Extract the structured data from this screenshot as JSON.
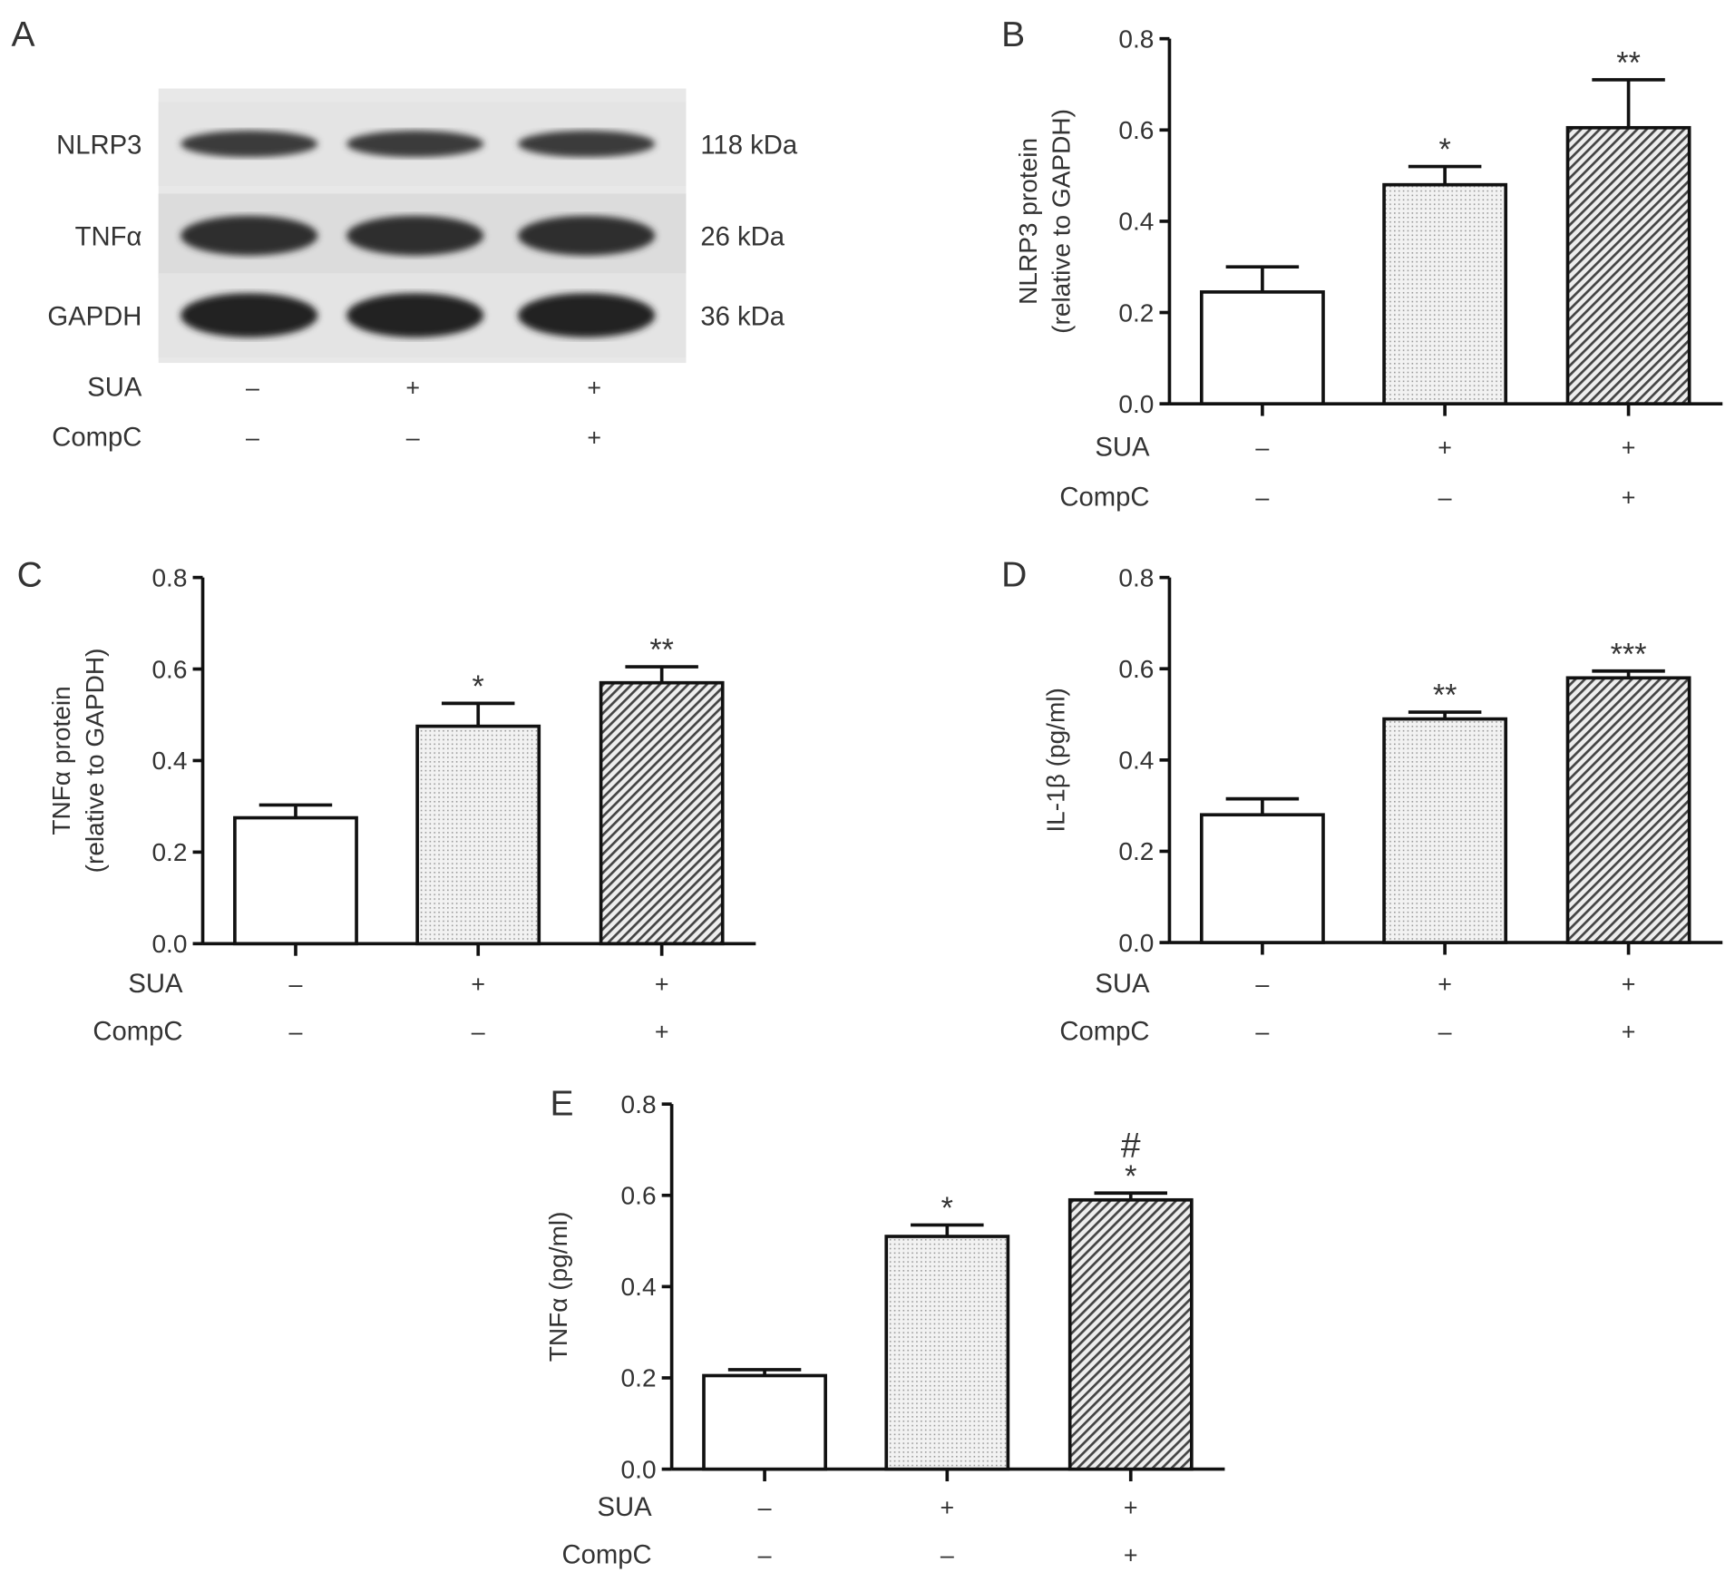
{
  "panel_a": {
    "label": "A",
    "bands": [
      {
        "name": "NLRP3",
        "size": "118 kDa"
      },
      {
        "name": "TNFα",
        "size": "26 kDa"
      },
      {
        "name": "GAPDH",
        "size": "36 kDa"
      }
    ],
    "rows": [
      {
        "name": "SUA",
        "signs": [
          "–",
          "+",
          "+"
        ]
      },
      {
        "name": "CompC",
        "signs": [
          "–",
          "–",
          "+"
        ]
      }
    ]
  },
  "chart_data": [
    {
      "panel": "B",
      "type": "bar",
      "ylabel": [
        "NLRP3 protein",
        "(relative to GAPDH)"
      ],
      "ylim": [
        0,
        0.8
      ],
      "yticks": [
        "0.0",
        "0.2",
        "0.4",
        "0.6",
        "0.8"
      ],
      "values": [
        0.245,
        0.48,
        0.605
      ],
      "errors": [
        0.055,
        0.04,
        0.105
      ],
      "annotations": [
        "",
        "*",
        "**"
      ],
      "rows": [
        {
          "name": "SUA",
          "signs": [
            "–",
            "+",
            "+"
          ]
        },
        {
          "name": "CompC",
          "signs": [
            "–",
            "–",
            "+"
          ]
        }
      ]
    },
    {
      "panel": "C",
      "type": "bar",
      "ylabel": [
        "TNFα protein",
        "(relative to GAPDH)"
      ],
      "ylim": [
        0,
        0.8
      ],
      "yticks": [
        "0.0",
        "0.2",
        "0.4",
        "0.6",
        "0.8"
      ],
      "values": [
        0.275,
        0.475,
        0.57
      ],
      "errors": [
        0.028,
        0.05,
        0.035
      ],
      "annotations": [
        "",
        "*",
        "**"
      ],
      "rows": [
        {
          "name": "SUA",
          "signs": [
            "–",
            "+",
            "+"
          ]
        },
        {
          "name": "CompC",
          "signs": [
            "–",
            "–",
            "+"
          ]
        }
      ]
    },
    {
      "panel": "D",
      "type": "bar",
      "ylabel": [
        "IL-1β (pg/ml)"
      ],
      "ylim": [
        0,
        0.8
      ],
      "yticks": [
        "0.0",
        "0.2",
        "0.4",
        "0.6",
        "0.8"
      ],
      "values": [
        0.28,
        0.49,
        0.58
      ],
      "errors": [
        0.035,
        0.015,
        0.015
      ],
      "annotations": [
        "",
        "**",
        "***"
      ],
      "rows": [
        {
          "name": "SUA",
          "signs": [
            "–",
            "+",
            "+"
          ]
        },
        {
          "name": "CompC",
          "signs": [
            "–",
            "–",
            "+"
          ]
        }
      ]
    },
    {
      "panel": "E",
      "type": "bar",
      "ylabel": [
        "TNFα (pg/ml)"
      ],
      "ylim": [
        0,
        0.8
      ],
      "yticks": [
        "0.0",
        "0.2",
        "0.4",
        "0.6",
        "0.8"
      ],
      "values": [
        0.205,
        0.51,
        0.59
      ],
      "errors": [
        0.013,
        0.025,
        0.015
      ],
      "annotations": [
        "",
        "*",
        "*"
      ],
      "annotations2": [
        "",
        "",
        "#"
      ],
      "rows": [
        {
          "name": "SUA",
          "signs": [
            "–",
            "+",
            "+"
          ]
        },
        {
          "name": "CompC",
          "signs": [
            "–",
            "–",
            "+"
          ]
        }
      ]
    }
  ]
}
